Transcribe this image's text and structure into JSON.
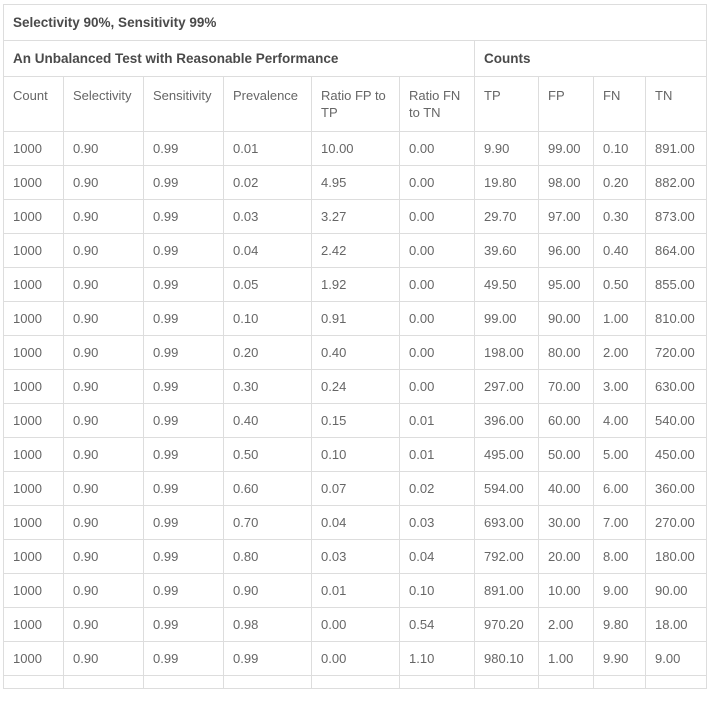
{
  "table": {
    "title": "Selectivity 90%, Sensitivity 99%",
    "group_headers": [
      {
        "label": "An Unbalanced Test with Reasonable Performance",
        "colspan": 6
      },
      {
        "label": "Counts",
        "colspan": 4
      }
    ],
    "columns": [
      "Count",
      "Selectivity",
      "Sensitivity",
      "Prevalence",
      "Ratio FP to TP",
      "Ratio FN to TN",
      "TP",
      "FP",
      "FN",
      "TN"
    ],
    "rows": [
      [
        "1000",
        "0.90",
        "0.99",
        "0.01",
        "10.00",
        "0.00",
        "9.90",
        "99.00",
        "0.10",
        "891.00"
      ],
      [
        "1000",
        "0.90",
        "0.99",
        "0.02",
        "4.95",
        "0.00",
        "19.80",
        "98.00",
        "0.20",
        "882.00"
      ],
      [
        "1000",
        "0.90",
        "0.99",
        "0.03",
        "3.27",
        "0.00",
        "29.70",
        "97.00",
        "0.30",
        "873.00"
      ],
      [
        "1000",
        "0.90",
        "0.99",
        "0.04",
        "2.42",
        "0.00",
        "39.60",
        "96.00",
        "0.40",
        "864.00"
      ],
      [
        "1000",
        "0.90",
        "0.99",
        "0.05",
        "1.92",
        "0.00",
        "49.50",
        "95.00",
        "0.50",
        "855.00"
      ],
      [
        "1000",
        "0.90",
        "0.99",
        "0.10",
        "0.91",
        "0.00",
        "99.00",
        "90.00",
        "1.00",
        "810.00"
      ],
      [
        "1000",
        "0.90",
        "0.99",
        "0.20",
        "0.40",
        "0.00",
        "198.00",
        "80.00",
        "2.00",
        "720.00"
      ],
      [
        "1000",
        "0.90",
        "0.99",
        "0.30",
        "0.24",
        "0.00",
        "297.00",
        "70.00",
        "3.00",
        "630.00"
      ],
      [
        "1000",
        "0.90",
        "0.99",
        "0.40",
        "0.15",
        "0.01",
        "396.00",
        "60.00",
        "4.00",
        "540.00"
      ],
      [
        "1000",
        "0.90",
        "0.99",
        "0.50",
        "0.10",
        "0.01",
        "495.00",
        "50.00",
        "5.00",
        "450.00"
      ],
      [
        "1000",
        "0.90",
        "0.99",
        "0.60",
        "0.07",
        "0.02",
        "594.00",
        "40.00",
        "6.00",
        "360.00"
      ],
      [
        "1000",
        "0.90",
        "0.99",
        "0.70",
        "0.04",
        "0.03",
        "693.00",
        "30.00",
        "7.00",
        "270.00"
      ],
      [
        "1000",
        "0.90",
        "0.99",
        "0.80",
        "0.03",
        "0.04",
        "792.00",
        "20.00",
        "8.00",
        "180.00"
      ],
      [
        "1000",
        "0.90",
        "0.99",
        "0.90",
        "0.01",
        "0.10",
        "891.00",
        "10.00",
        "9.00",
        "90.00"
      ],
      [
        "1000",
        "0.90",
        "0.99",
        "0.98",
        "0.00",
        "0.54",
        "970.20",
        "2.00",
        "9.80",
        "18.00"
      ],
      [
        "1000",
        "0.90",
        "0.99",
        "0.99",
        "0.00",
        "1.10",
        "980.10",
        "1.00",
        "9.90",
        "9.00"
      ]
    ]
  },
  "colors": {
    "border": "#dddddd",
    "heading_text": "#4a4a4a",
    "body_text": "#666666",
    "background": "#ffffff"
  }
}
